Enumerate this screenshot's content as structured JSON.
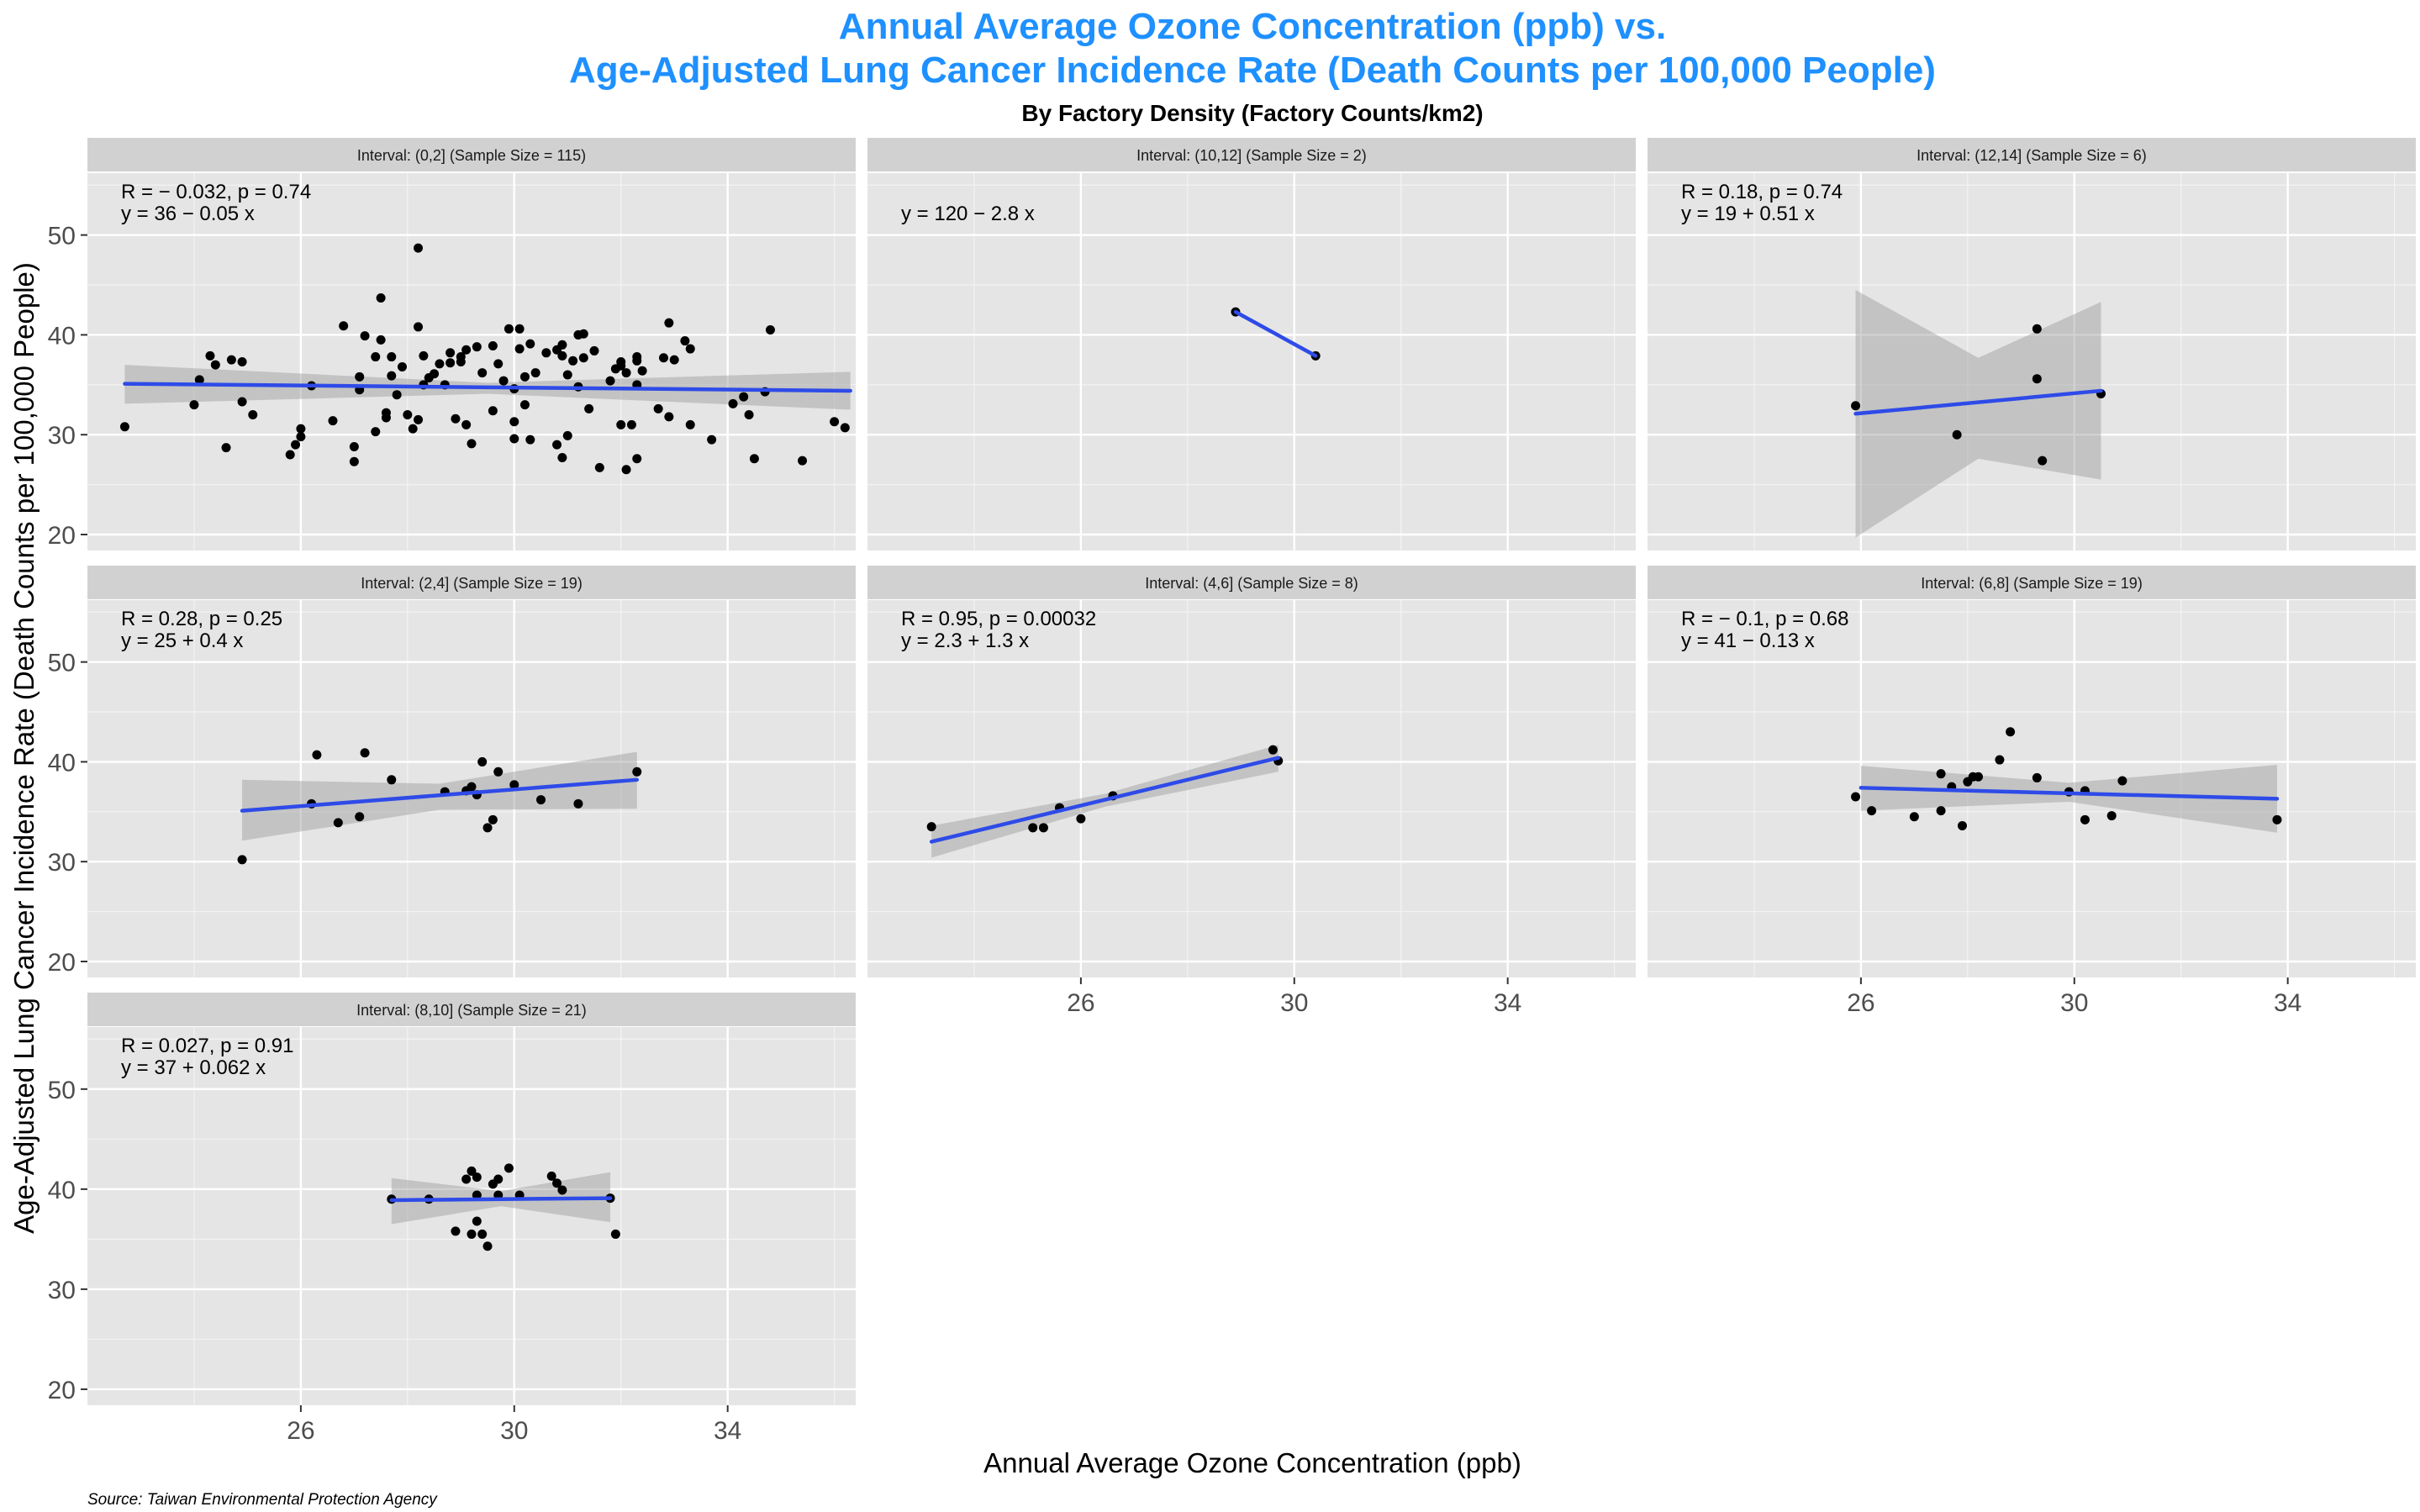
{
  "chart_data": {
    "type": "scatter",
    "title_line1": "Annual Average Ozone Concentration (ppb) vs.",
    "title_line2": "Age-Adjusted Lung Cancer Incidence Rate (Death Counts per 100,000 People)",
    "subtitle": "By Factory Density (Factory Counts/km2)",
    "xlabel": "Annual Average Ozone Concentration (ppb)",
    "ylabel": "Age-Adjusted Lung Cancer Incidence Rate (Death Counts per 100,000 People)",
    "caption": "Source: Taiwan Environmental Protection Agency",
    "xlim": [
      22.0,
      36.4
    ],
    "ylim": [
      18.4,
      56.2
    ],
    "x_ticks": [
      26,
      30,
      34
    ],
    "y_ticks": [
      20,
      30,
      40,
      50
    ],
    "grid": true,
    "colors": {
      "title": "#1E90FF",
      "fit_line": "#2E4BE8",
      "point": "#000000",
      "band": "#999999",
      "panel_bg": "#E5E5E5",
      "strip_bg": "#D1D1D1"
    },
    "panels": [
      {
        "label": "Interval: (0,2] (Sample Size = 115)",
        "stat_r": "R = − 0.032, p = 0.74",
        "stat_eq": "y = 36 − 0.05 x",
        "fit": {
          "x0": 22.7,
          "x1": 36.3,
          "y0": 35.1,
          "y1": 34.4
        },
        "band": {
          "lower": [
            33.1,
            34.1,
            32.5
          ],
          "upper": [
            37.0,
            35.2,
            36.3
          ]
        },
        "points": [
          [
            22.7,
            30.8
          ],
          [
            24.0,
            33.0
          ],
          [
            24.1,
            35.5
          ],
          [
            24.3,
            37.9
          ],
          [
            24.4,
            37.0
          ],
          [
            24.7,
            37.5
          ],
          [
            24.6,
            28.7
          ],
          [
            24.9,
            37.3
          ],
          [
            24.9,
            33.3
          ],
          [
            25.1,
            32.0
          ],
          [
            25.8,
            28.0
          ],
          [
            25.9,
            29.0
          ],
          [
            26.0,
            30.6
          ],
          [
            26.0,
            29.8
          ],
          [
            26.2,
            34.9
          ],
          [
            26.6,
            31.4
          ],
          [
            26.8,
            40.9
          ],
          [
            27.0,
            27.3
          ],
          [
            27.0,
            28.8
          ],
          [
            27.1,
            35.8
          ],
          [
            27.1,
            34.5
          ],
          [
            27.2,
            39.9
          ],
          [
            27.4,
            37.8
          ],
          [
            27.4,
            30.3
          ],
          [
            27.5,
            43.7
          ],
          [
            27.5,
            39.5
          ],
          [
            27.6,
            31.7
          ],
          [
            27.6,
            32.2
          ],
          [
            27.7,
            37.8
          ],
          [
            27.7,
            35.9
          ],
          [
            27.8,
            34.0
          ],
          [
            27.9,
            36.8
          ],
          [
            28.0,
            32.0
          ],
          [
            28.1,
            30.6
          ],
          [
            28.2,
            31.5
          ],
          [
            28.2,
            48.7
          ],
          [
            28.2,
            40.8
          ],
          [
            28.3,
            37.9
          ],
          [
            28.3,
            35.0
          ],
          [
            28.4,
            35.7
          ],
          [
            28.5,
            36.1
          ],
          [
            28.6,
            37.1
          ],
          [
            28.7,
            35.0
          ],
          [
            28.8,
            38.2
          ],
          [
            28.8,
            37.2
          ],
          [
            28.9,
            31.6
          ],
          [
            29.0,
            37.8
          ],
          [
            29.0,
            37.3
          ],
          [
            29.1,
            38.5
          ],
          [
            29.1,
            31.0
          ],
          [
            29.2,
            29.1
          ],
          [
            29.3,
            38.8
          ],
          [
            29.4,
            36.2
          ],
          [
            29.6,
            38.9
          ],
          [
            29.6,
            32.4
          ],
          [
            29.7,
            37.1
          ],
          [
            29.8,
            35.4
          ],
          [
            29.9,
            40.6
          ],
          [
            30.0,
            34.6
          ],
          [
            30.0,
            31.3
          ],
          [
            30.0,
            29.6
          ],
          [
            30.1,
            38.6
          ],
          [
            30.1,
            40.6
          ],
          [
            30.2,
            35.8
          ],
          [
            30.2,
            33.0
          ],
          [
            30.3,
            39.1
          ],
          [
            30.3,
            29.5
          ],
          [
            30.4,
            36.2
          ],
          [
            30.6,
            38.2
          ],
          [
            30.8,
            38.5
          ],
          [
            30.8,
            29.0
          ],
          [
            30.9,
            39.0
          ],
          [
            30.9,
            27.7
          ],
          [
            30.9,
            37.9
          ],
          [
            31.0,
            36.0
          ],
          [
            31.0,
            29.9
          ],
          [
            31.1,
            37.4
          ],
          [
            31.2,
            34.8
          ],
          [
            31.2,
            40.0
          ],
          [
            31.3,
            37.7
          ],
          [
            31.3,
            40.1
          ],
          [
            31.4,
            32.6
          ],
          [
            31.5,
            38.4
          ],
          [
            31.6,
            26.7
          ],
          [
            31.8,
            35.4
          ],
          [
            31.9,
            36.6
          ],
          [
            32.0,
            36.9
          ],
          [
            32.0,
            37.3
          ],
          [
            32.0,
            31.0
          ],
          [
            32.1,
            26.5
          ],
          [
            32.1,
            36.2
          ],
          [
            32.2,
            31.0
          ],
          [
            32.3,
            37.4
          ],
          [
            32.3,
            37.8
          ],
          [
            32.3,
            35.0
          ],
          [
            32.3,
            27.6
          ],
          [
            32.4,
            36.4
          ],
          [
            32.7,
            32.6
          ],
          [
            32.8,
            37.7
          ],
          [
            32.9,
            41.2
          ],
          [
            32.9,
            31.8
          ],
          [
            33.0,
            37.5
          ],
          [
            33.2,
            39.4
          ],
          [
            33.3,
            38.6
          ],
          [
            33.3,
            31.0
          ],
          [
            33.7,
            29.5
          ],
          [
            34.1,
            33.1
          ],
          [
            34.3,
            33.8
          ],
          [
            34.4,
            32.0
          ],
          [
            34.5,
            27.6
          ],
          [
            34.7,
            34.3
          ],
          [
            34.8,
            40.5
          ],
          [
            35.4,
            27.4
          ],
          [
            36.0,
            31.3
          ],
          [
            36.2,
            30.7
          ]
        ]
      },
      {
        "label": "Interval: (10,12] (Sample Size = 2)",
        "stat_r": "",
        "stat_eq": "y = 120 − 2.8 x",
        "fit": {
          "x0": 28.9,
          "x1": 30.4,
          "y0": 42.3,
          "y1": 37.9
        },
        "band": null,
        "points": [
          [
            28.9,
            42.3
          ],
          [
            30.4,
            37.9
          ]
        ]
      },
      {
        "label": "Interval: (12,14] (Sample Size = 6)",
        "stat_r": "R = 0.18, p = 0.74",
        "stat_eq": "y = 19 + 0.51 x",
        "fit": {
          "x0": 25.9,
          "x1": 30.5,
          "y0": 32.1,
          "y1": 34.4
        },
        "band": {
          "lower": [
            19.7,
            27.6,
            25.5
          ],
          "upper": [
            44.5,
            37.7,
            43.3
          ]
        },
        "points": [
          [
            25.9,
            32.9
          ],
          [
            27.8,
            30.0
          ],
          [
            29.3,
            40.6
          ],
          [
            29.3,
            35.6
          ],
          [
            29.4,
            27.4
          ],
          [
            30.5,
            34.1
          ]
        ]
      },
      {
        "label": "Interval: (2,4] (Sample Size = 19)",
        "stat_r": "R = 0.28, p = 0.25",
        "stat_eq": "y = 25 + 0.4 x",
        "fit": {
          "x0": 24.9,
          "x1": 32.3,
          "y0": 35.1,
          "y1": 38.2
        },
        "band": {
          "lower": [
            32.1,
            35.2,
            35.3
          ],
          "upper": [
            38.2,
            37.8,
            41.0
          ]
        },
        "points": [
          [
            24.9,
            30.2
          ],
          [
            26.2,
            35.8
          ],
          [
            26.3,
            40.7
          ],
          [
            26.7,
            33.9
          ],
          [
            27.1,
            34.5
          ],
          [
            27.2,
            40.9
          ],
          [
            27.7,
            38.2
          ],
          [
            28.7,
            37.0
          ],
          [
            29.1,
            37.1
          ],
          [
            29.2,
            37.5
          ],
          [
            29.3,
            36.7
          ],
          [
            29.4,
            40.0
          ],
          [
            29.5,
            33.4
          ],
          [
            29.6,
            34.2
          ],
          [
            29.7,
            39.0
          ],
          [
            30.0,
            37.7
          ],
          [
            30.5,
            36.2
          ],
          [
            31.2,
            35.8
          ],
          [
            32.3,
            39.0
          ]
        ]
      },
      {
        "label": "Interval: (4,6] (Sample Size = 8)",
        "stat_r": "R = 0.95, p = 0.00032",
        "stat_eq": "y = 2.3 + 1.3 x",
        "fit": {
          "x0": 23.2,
          "x1": 29.7,
          "y0": 32.0,
          "y1": 40.4
        },
        "band": {
          "lower": [
            30.4,
            35.5,
            39.0
          ],
          "upper": [
            33.6,
            36.8,
            41.7
          ]
        },
        "points": [
          [
            23.2,
            33.5
          ],
          [
            25.1,
            33.4
          ],
          [
            25.3,
            33.4
          ],
          [
            25.6,
            35.4
          ],
          [
            26.0,
            34.3
          ],
          [
            26.6,
            36.6
          ],
          [
            29.6,
            41.2
          ],
          [
            29.7,
            40.1
          ]
        ]
      },
      {
        "label": "Interval: (6,8] (Sample Size = 19)",
        "stat_r": "R = − 0.1, p = 0.68",
        "stat_eq": "y = 41 − 0.13 x",
        "fit": {
          "x0": 26.0,
          "x1": 33.8,
          "y0": 37.4,
          "y1": 36.3
        },
        "band": {
          "lower": [
            35.1,
            36.0,
            32.9
          ],
          "upper": [
            39.6,
            37.9,
            39.7
          ]
        },
        "points": [
          [
            25.9,
            36.5
          ],
          [
            26.2,
            35.1
          ],
          [
            27.0,
            34.5
          ],
          [
            27.5,
            35.1
          ],
          [
            27.5,
            38.8
          ],
          [
            27.7,
            37.5
          ],
          [
            27.9,
            33.6
          ],
          [
            28.0,
            38.0
          ],
          [
            28.1,
            38.5
          ],
          [
            28.2,
            38.5
          ],
          [
            28.6,
            40.2
          ],
          [
            28.8,
            43.0
          ],
          [
            29.3,
            38.4
          ],
          [
            29.9,
            37.0
          ],
          [
            30.2,
            34.2
          ],
          [
            30.2,
            37.1
          ],
          [
            30.7,
            34.6
          ],
          [
            30.9,
            38.1
          ],
          [
            33.8,
            34.2
          ]
        ]
      },
      {
        "label": "Interval: (8,10] (Sample Size = 21)",
        "stat_r": "R = 0.027, p = 0.91",
        "stat_eq": "y = 37 + 0.062 x",
        "fit": {
          "x0": 27.7,
          "x1": 31.8,
          "y0": 38.9,
          "y1": 39.1
        },
        "band": {
          "lower": [
            36.5,
            38.3,
            36.7
          ],
          "upper": [
            41.1,
            39.8,
            41.7
          ]
        },
        "points": [
          [
            27.7,
            39.0
          ],
          [
            28.4,
            39.0
          ],
          [
            28.9,
            35.8
          ],
          [
            29.1,
            41.0
          ],
          [
            29.2,
            41.8
          ],
          [
            29.2,
            35.5
          ],
          [
            29.3,
            39.4
          ],
          [
            29.3,
            41.2
          ],
          [
            29.3,
            36.8
          ],
          [
            29.4,
            35.5
          ],
          [
            29.5,
            34.3
          ],
          [
            29.6,
            40.5
          ],
          [
            29.7,
            39.4
          ],
          [
            29.7,
            41.0
          ],
          [
            29.9,
            42.1
          ],
          [
            30.1,
            39.4
          ],
          [
            30.7,
            41.3
          ],
          [
            30.8,
            40.6
          ],
          [
            30.9,
            39.9
          ],
          [
            31.8,
            39.1
          ],
          [
            31.9,
            35.5
          ]
        ]
      }
    ]
  }
}
